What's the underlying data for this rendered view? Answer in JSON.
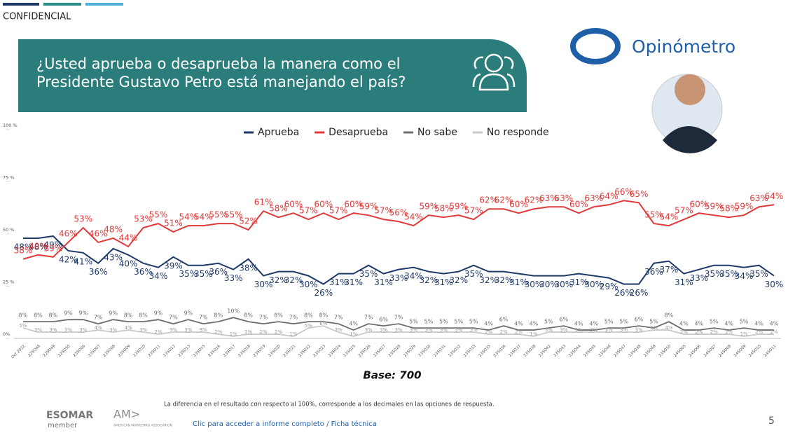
{
  "header": {
    "confidential": "CONFIDENCIAL",
    "title_line1": "¿Usted aprueba o desaprueba la manera como el",
    "title_line2": "Presidente Gustavo Petro está manejando el país?",
    "brand": "Opinómetro"
  },
  "chart_data": {
    "type": "line",
    "categories": [
      "Oct 2022",
      "22SO48",
      "22SO49",
      "22SO50",
      "23SO06",
      "23SO07",
      "23SO08",
      "23SO09",
      "23SO10",
      "23SO11",
      "23SO12",
      "23SO13",
      "23SO15",
      "23SO16",
      "23SO17",
      "23SO18",
      "23SO19",
      "23SO20",
      "23SO21",
      "23SO22",
      "23SO23",
      "23SO24",
      "23SO25",
      "23SO26",
      "23SO27",
      "23SO28",
      "23SO29",
      "23SO30",
      "23SO31",
      "23SO32",
      "23SO33",
      "23SO35",
      "23SO36",
      "23SO37",
      "23SO38",
      "23SO42",
      "23SO43",
      "23SO44",
      "23SO45",
      "23SO46",
      "23SO47",
      "23SO48",
      "23SO49",
      "23SO50",
      "24SO05",
      "24SO06",
      "24SO07",
      "24SO08",
      "24SO09",
      "24SO10",
      "24SO11"
    ],
    "series": [
      {
        "name": "Aprueba",
        "color": "#1f3a68",
        "values": [
          48,
          48,
          49,
          42,
          41,
          36,
          43,
          40,
          36,
          34,
          39,
          35,
          35,
          36,
          33,
          38,
          30,
          32,
          32,
          30,
          26,
          31,
          31,
          35,
          31,
          33,
          34,
          32,
          31,
          32,
          35,
          32,
          32,
          31,
          30,
          30,
          30,
          31,
          30,
          29,
          26,
          26,
          36,
          37,
          31,
          33,
          35,
          35,
          34,
          35,
          30
        ],
        "value_labels": [
          "48%",
          "48%",
          "49%",
          "42%",
          "41%",
          "36%",
          "43%",
          "40%",
          "36%",
          "34%",
          "39%",
          "35%",
          "35%",
          "36%",
          "33%",
          "38%",
          "30%",
          "32%",
          "32%",
          "30%",
          "26%",
          "31%",
          "31%",
          "35%",
          "31%",
          "33%",
          "34%",
          "32%",
          "31%",
          "32%",
          "35%",
          "32%",
          "32%",
          "31%",
          "30%",
          "30%",
          "30%",
          "31%",
          "30%",
          "29%",
          "26%",
          "26%",
          "36%",
          "37%",
          "31%",
          "33%",
          "35%",
          "35%",
          "34%",
          "35%",
          "30%"
        ]
      },
      {
        "name": "Desaprueba",
        "color": "#e03a3a",
        "values": [
          38,
          40,
          39,
          46,
          53,
          46,
          48,
          44,
          53,
          55,
          51,
          54,
          54,
          55,
          55,
          52,
          61,
          58,
          60,
          57,
          60,
          57,
          60,
          59,
          57,
          56,
          54,
          59,
          58,
          59,
          57,
          62,
          62,
          60,
          62,
          63,
          63,
          60,
          63,
          64,
          66,
          65,
          55,
          54,
          57,
          60,
          59,
          58,
          59,
          63,
          64
        ],
        "value_labels": [
          "38%",
          "40%",
          "39%",
          "46%",
          "53%",
          "46%",
          "48%",
          "44%",
          "53%",
          "55%",
          "51%",
          "54%",
          "54%",
          "55%",
          "55%",
          "52%",
          "61%",
          "58%",
          "60%",
          "57%",
          "60%",
          "57%",
          "60%",
          "59%",
          "57%",
          "56%",
          "54%",
          "59%",
          "58%",
          "59%",
          "57%",
          "62%",
          "62%",
          "60%",
          "62%",
          "63%",
          "63%",
          "60%",
          "63%",
          "64%",
          "66%",
          "65%",
          "55%",
          "54%",
          "57%",
          "60%",
          "59%",
          "58%",
          "59%",
          "63%",
          "64%"
        ]
      },
      {
        "name": "No sabe",
        "color": "#6d6d6d",
        "values": [
          8,
          8,
          8,
          9,
          9,
          7,
          9,
          8,
          8,
          9,
          7,
          9,
          7,
          8,
          10,
          8,
          7,
          8,
          7,
          8,
          8,
          7,
          4,
          7,
          6,
          7,
          5,
          5,
          5,
          5,
          5,
          4,
          6,
          4,
          4,
          5,
          6,
          4,
          4,
          5,
          5,
          6,
          5,
          8,
          4,
          4,
          5,
          4,
          5,
          4,
          4
        ],
        "value_labels": [
          "8%",
          "8%",
          "8%",
          "9%",
          "9%",
          "7%",
          "9%",
          "8%",
          "8%",
          "9%",
          "7%",
          "9%",
          "7%",
          "8%",
          "10%",
          "8%",
          "7%",
          "8%",
          "7%",
          "8%",
          "8%",
          "7%",
          "4%",
          "7%",
          "6%",
          "7%",
          "5%",
          "5%",
          "5%",
          "5%",
          "5%",
          "4%",
          "6%",
          "4%",
          "4%",
          "5%",
          "6%",
          "4%",
          "4%",
          "5%",
          "5%",
          "6%",
          "5%",
          "8%",
          "4%",
          "4%",
          "5%",
          "4%",
          "5%",
          "4%",
          "4%"
        ]
      },
      {
        "name": "No responde",
        "color": "#c9c9c9",
        "values": [
          5,
          3,
          3,
          3,
          3,
          4,
          3,
          4,
          3,
          2,
          3,
          3,
          3,
          2,
          1,
          2,
          2,
          2,
          1,
          5,
          6,
          3,
          1,
          3,
          3,
          3,
          3,
          3,
          3,
          3,
          3,
          2,
          2,
          2,
          1,
          3,
          3,
          3,
          3,
          3,
          3,
          3,
          4,
          4,
          2,
          2,
          2,
          2,
          1,
          2,
          2
        ],
        "value_labels": [
          "5%",
          "3%",
          "3%",
          "3%",
          "3%",
          "4%",
          "3%",
          "4%",
          "3%",
          "2%",
          "3%",
          "3%",
          "3%",
          "2%",
          "1%",
          "2%",
          "2%",
          "2%",
          "1%",
          "5%",
          "6%",
          "3%",
          "1%",
          "3%",
          "3%",
          "3%",
          "3%",
          "3%",
          "3%",
          "3%",
          "3%",
          "2%",
          "2%",
          "2%",
          "1%",
          "3%",
          "3%",
          "3%",
          "3%",
          "3%",
          "3%",
          "3%",
          "4%",
          "4%",
          "2%",
          "2%",
          "2%",
          "2%",
          "1%",
          "2%",
          "2%"
        ]
      }
    ],
    "ylim": [
      0,
      100
    ],
    "yticks": [
      {
        "value": 0,
        "label": "0%"
      },
      {
        "value": 25,
        "label": "25 %"
      },
      {
        "value": 50,
        "label": "50 %"
      },
      {
        "value": 75,
        "label": "75 %"
      },
      {
        "value": 100,
        "label": "100 %"
      }
    ],
    "legend": "top",
    "base": "Base: 700"
  },
  "footer": {
    "note": "La diferencia en el resultado con respecto al 100%, corresponde a los decimales en las opciones de respuesta.",
    "link": "Clic para acceder a informe completo / Ficha técnica",
    "page": "5",
    "esomar": "ESOMAR",
    "esomar_sub": "member",
    "ama": "AM>",
    "ama_sub": "AMERICAN MARKETING ASSOCIATION"
  }
}
